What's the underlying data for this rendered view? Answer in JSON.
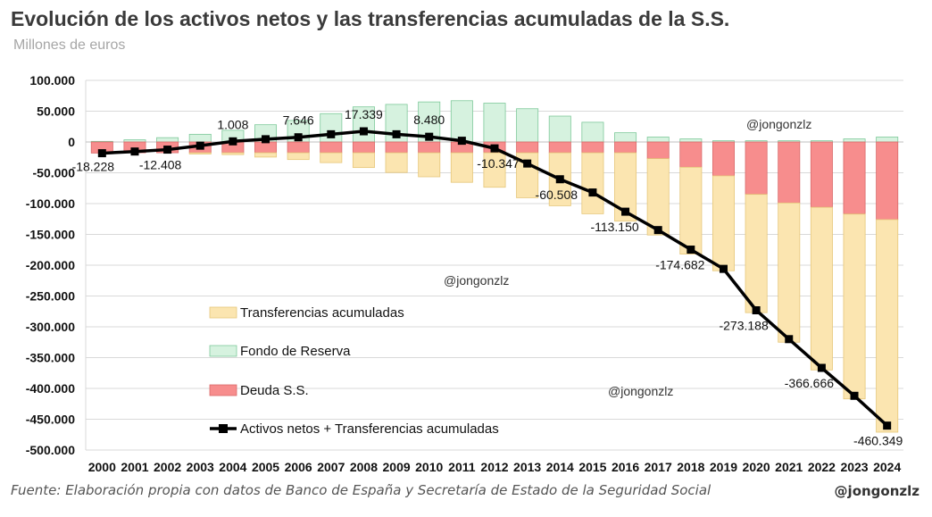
{
  "header": {
    "title": "Evolución de los activos netos y las transferencias acumuladas de la S.S.",
    "subtitle": "Millones de euros"
  },
  "footer": {
    "source": "Fuente: Elaboración propia con datos de Banco de España y Secretaría de Estado de la Seguridad Social",
    "handle": "@jongonzlz"
  },
  "watermarks": [
    "@jongonzlz",
    "@jongonzlz",
    "@jongonzlz"
  ],
  "colors": {
    "transferencias": "#fbe5b0",
    "transferencias_edge": "#e6c77a",
    "fondo": "#d6f2df",
    "fondo_edge": "#7ec99a",
    "deuda": "#f78d8d",
    "deuda_edge": "#d96a6a",
    "line": "#000000",
    "grid": "#d9d9d9"
  },
  "chart_data": {
    "type": "bar",
    "title": "Evolución de los activos netos y las transferencias acumuladas de la S.S.",
    "subtitle": "Millones de euros",
    "categories": [
      "2000",
      "2001",
      "2002",
      "2003",
      "2004",
      "2005",
      "2006",
      "2007",
      "2008",
      "2009",
      "2010",
      "2011",
      "2012",
      "2013",
      "2014",
      "2015",
      "2016",
      "2017",
      "2018",
      "2019",
      "2020",
      "2021",
      "2022",
      "2023",
      "2024"
    ],
    "ylim": [
      -500000,
      100000
    ],
    "yticks": [
      100000,
      50000,
      0,
      -50000,
      -100000,
      -150000,
      -200000,
      -250000,
      -300000,
      -350000,
      -400000,
      -450000,
      -500000
    ],
    "ytick_labels": [
      "100.000",
      "50.000",
      "0",
      "-50.000",
      "-100.000",
      "-150.000",
      "-200.000",
      "-250.000",
      "-300.000",
      "-350.000",
      "-400.000",
      "-450.000",
      "-500.000"
    ],
    "grid": true,
    "legend_position": "inside-left",
    "series": [
      {
        "name": "Transferencias acumuladas",
        "kind": "bar",
        "values": [
          0,
          0,
          0,
          -2000,
          -3000,
          -7000,
          -11000,
          -16000,
          -24000,
          -32000,
          -39000,
          -48000,
          -56000,
          -73000,
          -86000,
          -99000,
          -111000,
          -124000,
          -141000,
          -154000,
          -192000,
          -226000,
          -264000,
          -300000,
          -345000
        ]
      },
      {
        "name": "Fondo de Reserva",
        "kind": "bar",
        "values": [
          1000,
          3500,
          7000,
          12500,
          19000,
          28000,
          35000,
          46000,
          57000,
          61000,
          65000,
          67000,
          63000,
          54000,
          42000,
          32000,
          15000,
          8000,
          5000,
          2000,
          2000,
          2000,
          2000,
          5000,
          8000
        ]
      },
      {
        "name": "Deuda S.S.",
        "kind": "bar",
        "values": [
          -18000,
          -17500,
          -17500,
          -17500,
          -17500,
          -17500,
          -17500,
          -17500,
          -17500,
          -17500,
          -17500,
          -17500,
          -17500,
          -17500,
          -17500,
          -17500,
          -17500,
          -27000,
          -41000,
          -55000,
          -85000,
          -99000,
          -106000,
          -117000,
          -126000
        ]
      },
      {
        "name": "Activos netos + Transferencias acumuladas",
        "kind": "line",
        "values": [
          -18228,
          -15500,
          -12408,
          -6000,
          1008,
          4500,
          7646,
          12500,
          17339,
          12500,
          8480,
          2000,
          -10347,
          -35000,
          -60508,
          -82000,
          -113150,
          -143000,
          -174682,
          -206000,
          -273188,
          -320000,
          -366666,
          -412000,
          -460349
        ]
      }
    ],
    "data_labels": [
      {
        "index": 0,
        "text": "-18.228"
      },
      {
        "index": 2,
        "text": "-12.408"
      },
      {
        "index": 4,
        "text": "1.008"
      },
      {
        "index": 6,
        "text": "7.646"
      },
      {
        "index": 8,
        "text": "17.339"
      },
      {
        "index": 10,
        "text": "8.480"
      },
      {
        "index": 12,
        "text": "-10.347"
      },
      {
        "index": 14,
        "text": "-60.508"
      },
      {
        "index": 16,
        "text": "-113.150"
      },
      {
        "index": 18,
        "text": "-174.682"
      },
      {
        "index": 20,
        "text": "-273.188"
      },
      {
        "index": 22,
        "text": "-366.666"
      },
      {
        "index": 24,
        "text": "-460.349"
      }
    ]
  }
}
